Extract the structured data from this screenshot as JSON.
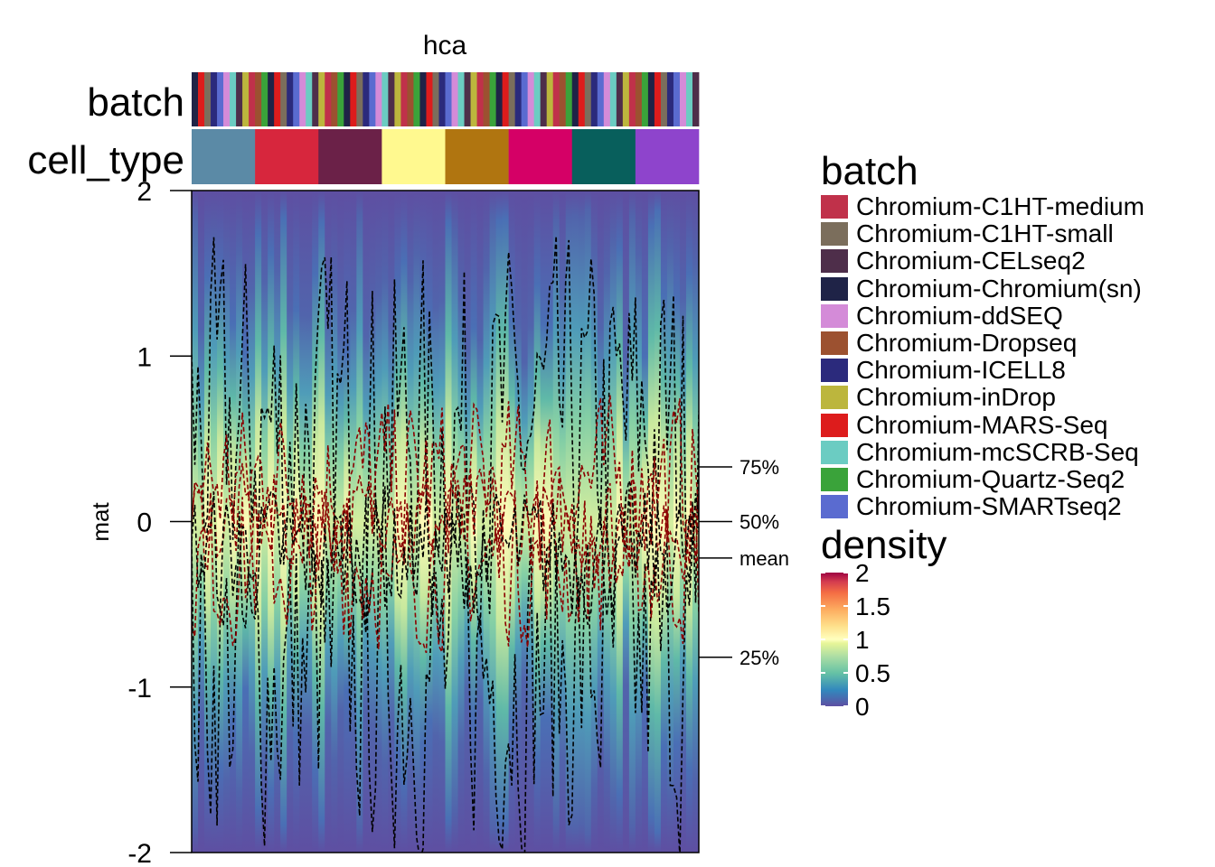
{
  "chart_data": {
    "type": "heatmap",
    "title": "hca",
    "ylabel": "mat",
    "ylim": [
      -2,
      2
    ],
    "y_ticks": [
      "2",
      "1",
      "0",
      "-1",
      "-2"
    ],
    "annotation_labels": [
      "batch",
      "cell_type"
    ],
    "cell_type_colors": [
      "#5b8aa6",
      "#d7263d",
      "#6b2148",
      "#fff98f",
      "#b07510",
      "#d50066",
      "#085f5c",
      "#8e44cc"
    ],
    "quantile_markers": [
      {
        "label": "75%",
        "value": 0.33
      },
      {
        "label": "50%",
        "value": 0.0
      },
      {
        "label": "mean",
        "value": -0.22
      },
      {
        "label": "25%",
        "value": -0.82
      }
    ],
    "n_columns": 80,
    "density_legend": {
      "title": "density",
      "ticks": [
        "2",
        "1.5",
        "1",
        "0.5",
        "0"
      ],
      "range": [
        0,
        2
      ]
    }
  },
  "batch_legend": {
    "title": "batch",
    "items": [
      {
        "label": "Chromium-C1HT-medium",
        "color": "#c0314a"
      },
      {
        "label": "Chromium-C1HT-small",
        "color": "#7b6e5c"
      },
      {
        "label": "Chromium-CELseq2",
        "color": "#4e2e4a"
      },
      {
        "label": "Chromium-Chromium(sn)",
        "color": "#1f2347"
      },
      {
        "label": "Chromium-ddSEQ",
        "color": "#d48bd8"
      },
      {
        "label": "Chromium-Dropseq",
        "color": "#9c5130"
      },
      {
        "label": "Chromium-ICELL8",
        "color": "#2b2a7c"
      },
      {
        "label": "Chromium-inDrop",
        "color": "#bcb63d"
      },
      {
        "label": "Chromium-MARS-Seq",
        "color": "#dd1c1c"
      },
      {
        "label": "Chromium-mcSCRB-Seq",
        "color": "#6bccc2"
      },
      {
        "label": "Chromium-Quartz-Seq2",
        "color": "#3aa33a"
      },
      {
        "label": "Chromium-SMARTseq2",
        "color": "#5a6bd0"
      }
    ]
  }
}
